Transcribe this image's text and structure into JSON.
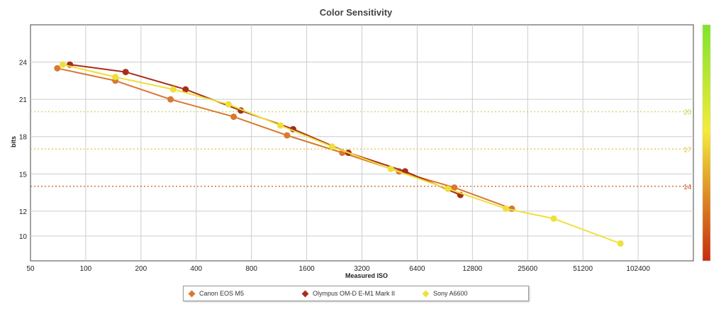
{
  "chart_data": {
    "type": "line",
    "title": "Color Sensitivity",
    "xlabel": "Measured ISO",
    "ylabel": "bits",
    "x_scale": "log2",
    "xlim": [
      50,
      204800
    ],
    "ylim": [
      8,
      27
    ],
    "x_ticks": [
      50,
      100,
      200,
      400,
      800,
      1600,
      3200,
      6400,
      12800,
      25600,
      51200,
      102400
    ],
    "x_tick_labels": [
      "50",
      "100",
      "200",
      "400",
      "800",
      "1600",
      "3200",
      "6400",
      "12800",
      "25600",
      "51200",
      "102400"
    ],
    "y_ticks": [
      10,
      12,
      15,
      18,
      21,
      24
    ],
    "y_tick_labels": [
      "10",
      "12",
      "15",
      "18",
      "21",
      "24"
    ],
    "grid": true,
    "reference_lines": [
      {
        "value": 20,
        "label": "20",
        "color": "#b5d94a"
      },
      {
        "value": 17,
        "label": "17",
        "color": "#e0c23a"
      },
      {
        "value": 14,
        "label": "14",
        "color": "#c8581f"
      }
    ],
    "colorbar": {
      "top_color": "#7fe52a",
      "mid_color": "#f5ea3a",
      "bottom_color": "#c62d0e"
    },
    "series": [
      {
        "name": "Canon EOS M5",
        "color": "#d9782f",
        "x": [
          70,
          145,
          290,
          640,
          1250,
          2500,
          5100,
          10200,
          21000
        ],
        "y": [
          23.5,
          22.5,
          21.0,
          19.6,
          18.1,
          16.7,
          15.2,
          13.9,
          12.2
        ]
      },
      {
        "name": "Olympus OM-D E-M1 Mark II",
        "color": "#a82e1a",
        "x": [
          82,
          165,
          350,
          700,
          1350,
          2700,
          5500,
          11000
        ],
        "y": [
          23.8,
          23.2,
          21.8,
          20.1,
          18.6,
          16.7,
          15.2,
          13.3
        ]
      },
      {
        "name": "Sony A6600",
        "color": "#eee03a",
        "x": [
          75,
          145,
          300,
          600,
          1150,
          2200,
          4600,
          9400,
          19500,
          35500,
          82000
        ],
        "y": [
          23.8,
          22.8,
          21.8,
          20.6,
          18.9,
          17.2,
          15.4,
          13.8,
          12.2,
          11.4,
          9.4
        ]
      }
    ]
  }
}
